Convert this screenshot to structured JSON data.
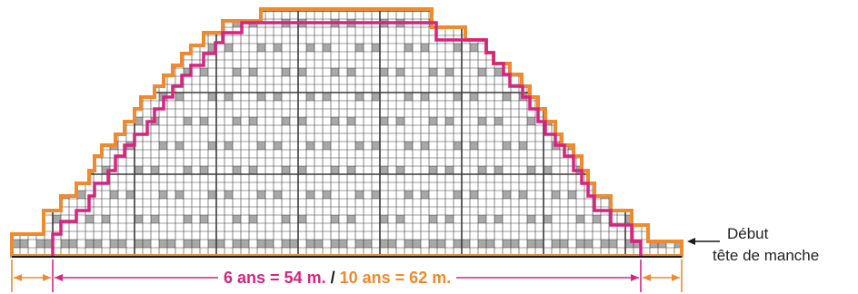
{
  "colors": {
    "grid_line": "#3a3a3a",
    "shaded_cell": "#a8a8a8",
    "outline_large": "#ef8a2f",
    "outline_small": "#d6247f",
    "background": "#ffffff"
  },
  "chart_data": {
    "type": "knitting-chart",
    "caption": {
      "size_small": "6 ans = 54 m.",
      "separator": "/",
      "size_large": "10 ans = 62 m."
    },
    "annotation": {
      "line1": "Début",
      "line2": "tête de manche"
    },
    "stitches": {
      "small": 54,
      "large": 62
    }
  }
}
